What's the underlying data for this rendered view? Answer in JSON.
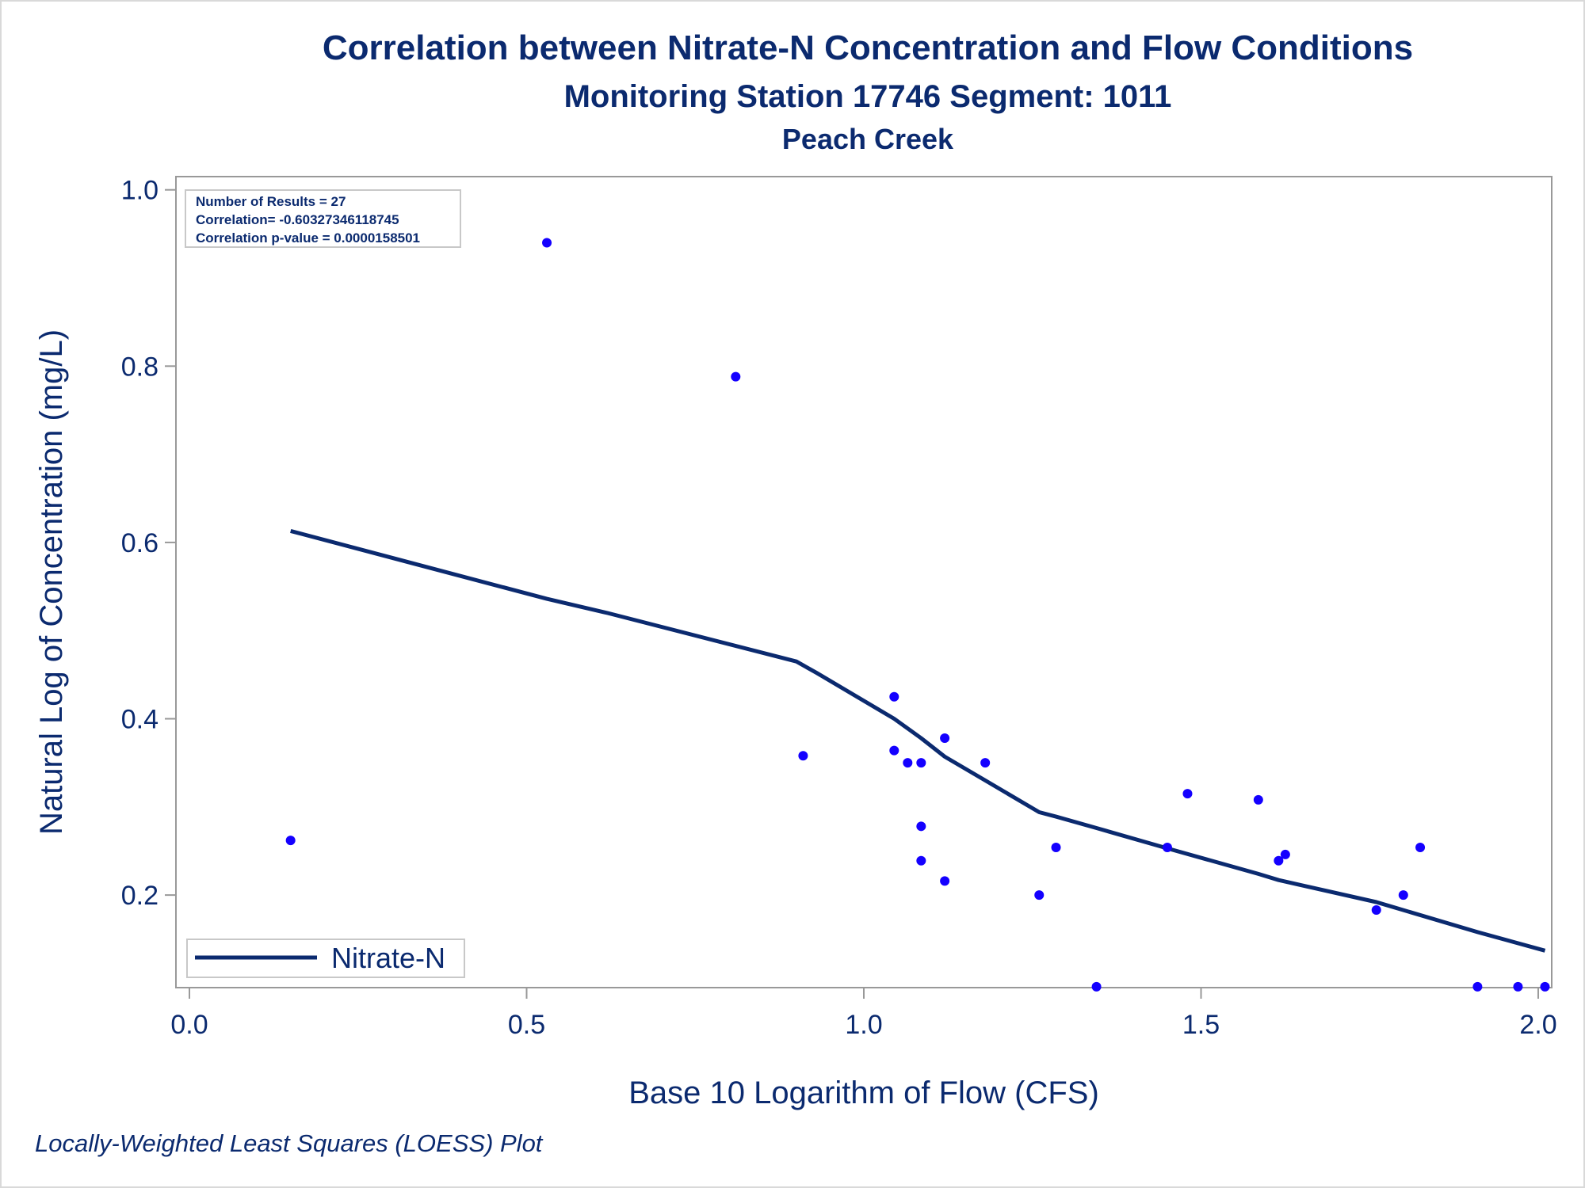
{
  "chart_data": {
    "type": "scatter",
    "title": "Correlation between Nitrate-N Concentration and Flow Conditions",
    "subtitle": "Monitoring Station 17746 Segment: 1011",
    "subtitle2": "Peach Creek",
    "xlabel": "Base 10 Logarithm of Flow (CFS)",
    "ylabel": "Natural Log of Concentration (mg/L)",
    "footnote": "Locally-Weighted Least Squares (LOESS) Plot",
    "xlim": [
      -0.02,
      2.02
    ],
    "ylim": [
      0.095,
      1.015
    ],
    "x_ticks": [
      0.0,
      0.5,
      1.0,
      1.5,
      2.0
    ],
    "x_tick_labels": [
      "0.0",
      "0.5",
      "1.0",
      "1.5",
      "2.0"
    ],
    "y_ticks": [
      0.2,
      0.4,
      0.6,
      0.8,
      1.0
    ],
    "y_tick_labels": [
      "0.2",
      "0.4",
      "0.6",
      "0.8",
      "1.0"
    ],
    "grid": false,
    "inset": [
      "Number of Results = 27",
      "Correlation= -0.60327346118745",
      "Correlation p-value = 0.0000158501"
    ],
    "legend": {
      "position": "bottom-left",
      "entries": [
        "Nitrate-N"
      ]
    },
    "colors": {
      "points": "#1400ff",
      "line": "#0b2a6f",
      "text": "#0b2a6f",
      "frame": "#999999"
    },
    "points": [
      {
        "x": 0.15,
        "y": 0.262
      },
      {
        "x": 0.53,
        "y": 0.94
      },
      {
        "x": 0.81,
        "y": 0.788
      },
      {
        "x": 0.91,
        "y": 0.358
      },
      {
        "x": 1.045,
        "y": 0.425
      },
      {
        "x": 1.045,
        "y": 0.364
      },
      {
        "x": 1.065,
        "y": 0.35
      },
      {
        "x": 1.085,
        "y": 0.35
      },
      {
        "x": 1.085,
        "y": 0.278
      },
      {
        "x": 1.085,
        "y": 0.239
      },
      {
        "x": 1.12,
        "y": 0.378
      },
      {
        "x": 1.12,
        "y": 0.216
      },
      {
        "x": 1.18,
        "y": 0.35
      },
      {
        "x": 1.26,
        "y": 0.2
      },
      {
        "x": 1.285,
        "y": 0.254
      },
      {
        "x": 1.345,
        "y": 0.096
      },
      {
        "x": 1.45,
        "y": 0.254
      },
      {
        "x": 1.48,
        "y": 0.315
      },
      {
        "x": 1.585,
        "y": 0.308
      },
      {
        "x": 1.615,
        "y": 0.239
      },
      {
        "x": 1.625,
        "y": 0.246
      },
      {
        "x": 1.76,
        "y": 0.183
      },
      {
        "x": 1.8,
        "y": 0.2
      },
      {
        "x": 1.825,
        "y": 0.254
      },
      {
        "x": 1.91,
        "y": 0.096
      },
      {
        "x": 1.97,
        "y": 0.096
      },
      {
        "x": 2.01,
        "y": 0.096
      }
    ],
    "series": [
      {
        "name": "Nitrate-N",
        "type": "line",
        "x": [
          0.15,
          0.53,
          0.62,
          0.9,
          0.93,
          1.045,
          1.085,
          1.12,
          1.18,
          1.26,
          1.285,
          1.345,
          1.45,
          1.585,
          1.615,
          1.76,
          1.91,
          2.01
        ],
        "y": [
          0.613,
          0.536,
          0.52,
          0.465,
          0.452,
          0.4,
          0.378,
          0.357,
          0.33,
          0.294,
          0.289,
          0.276,
          0.253,
          0.224,
          0.217,
          0.192,
          0.158,
          0.137
        ]
      }
    ]
  }
}
